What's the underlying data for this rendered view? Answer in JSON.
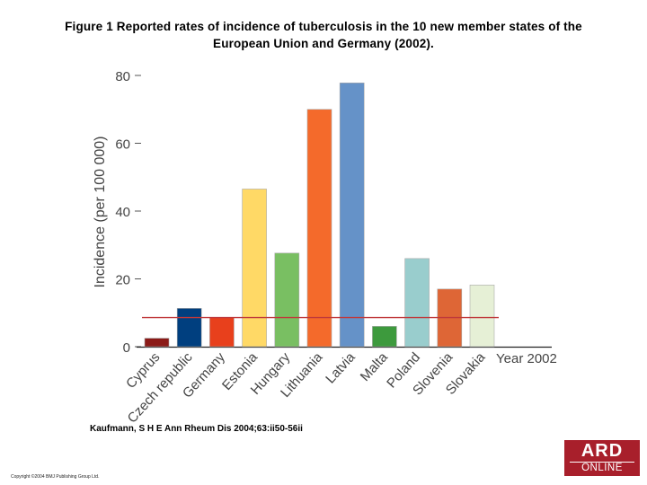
{
  "header": {
    "title_line1": "Figure 1 Reported rates of incidence of tuberculosis in the 10 new member states of the",
    "title_line2": "European Union and Germany (2002)."
  },
  "chart_data": {
    "type": "bar",
    "title": "Figure 1 Reported rates of incidence of tuberculosis in the 10 new member states of the European Union and Germany (2002).",
    "xlabel": "Year 2002",
    "ylabel": "Incidence (per 100 000)",
    "ylim": [
      0,
      80
    ],
    "yticks": [
      0,
      20,
      40,
      60,
      80
    ],
    "grid": false,
    "categories": [
      "Cyprus",
      "Czech republic",
      "Germany",
      "Estonia",
      "Hungary",
      "Lithuania",
      "Latvia",
      "Malta",
      "Poland",
      "Slovenia",
      "Slovakia"
    ],
    "values": [
      2.5,
      11.3,
      8.6,
      46.5,
      27.6,
      70,
      77.8,
      6,
      26,
      17,
      18.2
    ],
    "colors": [
      "#8b1a17",
      "#003f7f",
      "#e8401c",
      "#ffd966",
      "#79bf62",
      "#f46a2b",
      "#6592c8",
      "#3d9a3d",
      "#99cdcd",
      "#de6636",
      "#e6f0d6"
    ],
    "reference_line": {
      "value": 8.6,
      "color": "#c0393b"
    }
  },
  "citation": "Kaufmann, S H E Ann Rheum Dis 2004;63:ii50-56ii",
  "copyright": "Copyright ©2004 BMJ Publishing Group Ltd.",
  "logo": {
    "line1": "ARD",
    "line2": "ONLINE"
  }
}
